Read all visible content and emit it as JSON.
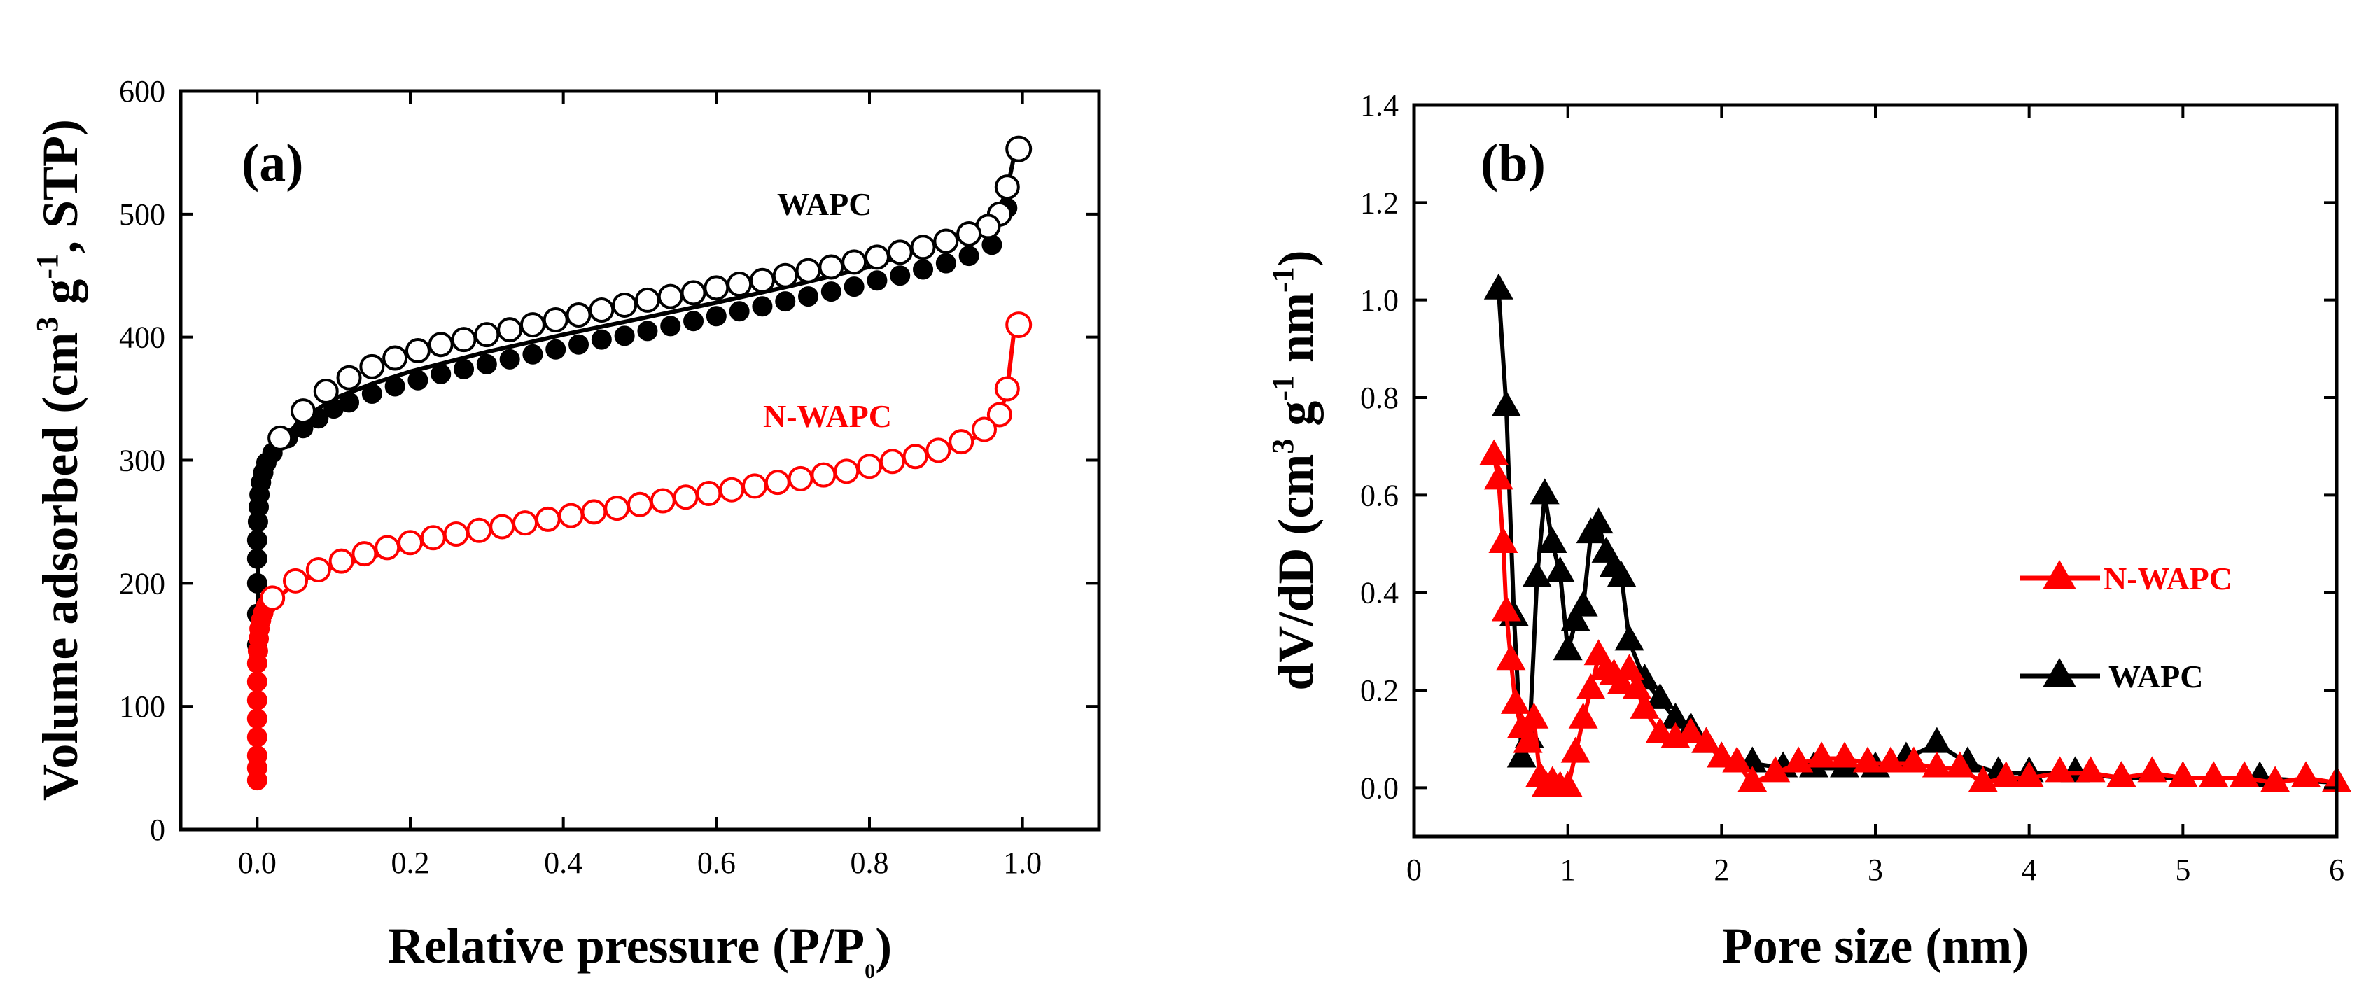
{
  "chart_data": [
    {
      "type": "scatter",
      "panel_label": "(a)",
      "xlabel_main": "Relative pressure (P/P",
      "xlabel_sub": "0",
      "xlabel_end": ")",
      "ylabel_parts": [
        "Volume adsorbed (cm",
        "3",
        " g",
        "-1",
        ", STP)"
      ],
      "xlim": [
        -0.1,
        1.1
      ],
      "ylim": [
        0,
        600
      ],
      "xticks": [
        0.0,
        0.2,
        0.4,
        0.6,
        0.8,
        1.0
      ],
      "xtick_labels": [
        "0.0",
        "0.2",
        "0.4",
        "0.6",
        "0.8",
        "1.0"
      ],
      "yticks": [
        0,
        100,
        200,
        300,
        400,
        500,
        600
      ],
      "ytick_labels": [
        "0",
        "100",
        "200",
        "300",
        "400",
        "500",
        "600"
      ],
      "series": [
        {
          "name": "WAPC",
          "color": "#000000",
          "curve_x": [
            0.0,
            0.001,
            0.003,
            0.006,
            0.01,
            0.02,
            0.03,
            0.05,
            0.08,
            0.1,
            0.15,
            0.2,
            0.3,
            0.4,
            0.5,
            0.6,
            0.7,
            0.8,
            0.9,
            0.95,
            0.97,
            0.98,
            0.99
          ],
          "curve_y": [
            150,
            200,
            240,
            270,
            290,
            305,
            315,
            328,
            342,
            350,
            362,
            372,
            388,
            402,
            415,
            428,
            442,
            457,
            478,
            495,
            505,
            520,
            550
          ],
          "adsorption": {
            "x": [
              0.0,
              0.0,
              0.0,
              0.0,
              0.0,
              0.001,
              0.002,
              0.003,
              0.005,
              0.008,
              0.012,
              0.02,
              0.04,
              0.06,
              0.08,
              0.1,
              0.12,
              0.15,
              0.18,
              0.21,
              0.24,
              0.27,
              0.3,
              0.33,
              0.36,
              0.39,
              0.42,
              0.45,
              0.48,
              0.51,
              0.54,
              0.57,
              0.6,
              0.63,
              0.66,
              0.69,
              0.72,
              0.75,
              0.78,
              0.81,
              0.84,
              0.87,
              0.9,
              0.93,
              0.96,
              0.98
            ],
            "y": [
              150,
              175,
              200,
              220,
              235,
              250,
              262,
              272,
              282,
              290,
              298,
              306,
              318,
              326,
              334,
              342,
              347,
              354,
              360,
              365,
              370,
              374,
              378,
              382,
              386,
              390,
              394,
              398,
              401,
              405,
              409,
              413,
              417,
              421,
              425,
              429,
              433,
              437,
              441,
              446,
              450,
              455,
              460,
              466,
              475,
              505
            ]
          },
          "desorption": {
            "x": [
              0.98,
              0.97,
              0.955,
              0.93,
              0.9,
              0.87,
              0.84,
              0.81,
              0.78,
              0.75,
              0.72,
              0.69,
              0.66,
              0.63,
              0.6,
              0.57,
              0.54,
              0.51,
              0.48,
              0.45,
              0.42,
              0.39,
              0.36,
              0.33,
              0.3,
              0.27,
              0.24,
              0.21,
              0.18,
              0.15,
              0.12,
              0.09,
              0.06,
              0.03
            ],
            "y": [
              522,
              500,
              490,
              484,
              478,
              473,
              469,
              465,
              461,
              457,
              454,
              450,
              446,
              443,
              440,
              436,
              433,
              430,
              426,
              422,
              418,
              414,
              410,
              406,
              402,
              398,
              394,
              389,
              383,
              376,
              367,
              356,
              340,
              318
            ]
          },
          "endpoint": {
            "x": 0.995,
            "y": 553
          }
        },
        {
          "name": "N-WAPC",
          "color": "#ff0000",
          "curve_x": [
            0.0,
            0.002,
            0.005,
            0.01,
            0.02,
            0.05,
            0.1,
            0.2,
            0.3,
            0.4,
            0.5,
            0.6,
            0.7,
            0.8,
            0.9,
            0.95,
            0.97,
            0.98,
            0.99
          ],
          "curve_y": [
            40,
            120,
            150,
            170,
            185,
            200,
            213,
            230,
            243,
            253,
            262,
            271,
            281,
            292,
            308,
            322,
            335,
            358,
            410
          ],
          "adsorption": {
            "x": [
              0.0,
              0.0,
              0.0,
              0.0,
              0.0,
              0.0,
              0.0,
              0.0,
              0.001,
              0.002,
              0.003,
              0.005,
              0.008,
              0.012
            ],
            "y": [
              40,
              50,
              60,
              75,
              90,
              105,
              120,
              135,
              145,
              155,
              163,
              170,
              176,
              182
            ]
          },
          "desorption": {
            "x": [
              0.98,
              0.97,
              0.95,
              0.92,
              0.89,
              0.86,
              0.83,
              0.8,
              0.77,
              0.74,
              0.71,
              0.68,
              0.65,
              0.62,
              0.59,
              0.56,
              0.53,
              0.5,
              0.47,
              0.44,
              0.41,
              0.38,
              0.35,
              0.32,
              0.29,
              0.26,
              0.23,
              0.2,
              0.17,
              0.14,
              0.11,
              0.08,
              0.05,
              0.02
            ],
            "y": [
              358,
              337,
              325,
              315,
              308,
              303,
              299,
              295,
              291,
              288,
              285,
              282,
              279,
              276,
              273,
              270,
              267,
              264,
              261,
              258,
              255,
              252,
              249,
              246,
              243,
              240,
              237,
              233,
              229,
              224,
              218,
              211,
              202,
              188
            ]
          },
          "endpoint": {
            "x": 0.995,
            "y": 410
          }
        }
      ]
    },
    {
      "type": "line",
      "panel_label": "(b)",
      "xlabel": "Pore size (nm)",
      "ylabel_parts": [
        "dV/dD (cm",
        "3",
        " g",
        "-1",
        " nm",
        "-1",
        ")"
      ],
      "xlim": [
        0,
        6
      ],
      "ylim": [
        -0.1,
        1.4
      ],
      "xticks": [
        0,
        1,
        2,
        3,
        4,
        5,
        6
      ],
      "xtick_labels": [
        "0",
        "1",
        "2",
        "3",
        "4",
        "5",
        "6"
      ],
      "yticks": [
        0.0,
        0.2,
        0.4,
        0.6,
        0.8,
        1.0,
        1.2,
        1.4
      ],
      "ytick_labels": [
        "0.0",
        "0.2",
        "0.4",
        "0.6",
        "0.8",
        "1.0",
        "1.2",
        "1.4"
      ],
      "legend": [
        "N-WAPC",
        "WAPC"
      ],
      "series": [
        {
          "name": "WAPC",
          "color": "#000000",
          "x": [
            0.55,
            0.6,
            0.65,
            0.7,
            0.75,
            0.8,
            0.85,
            0.9,
            0.95,
            1.0,
            1.05,
            1.1,
            1.15,
            1.2,
            1.25,
            1.3,
            1.35,
            1.4,
            1.5,
            1.6,
            1.7,
            1.8,
            1.9,
            2.0,
            2.2,
            2.4,
            2.6,
            2.8,
            3.0,
            3.2,
            3.4,
            3.6,
            3.8,
            4.0,
            4.3,
            4.6,
            5.0,
            5.5,
            6.0
          ],
          "y": [
            1.02,
            0.78,
            0.35,
            0.06,
            0.1,
            0.43,
            0.6,
            0.5,
            0.44,
            0.28,
            0.34,
            0.37,
            0.52,
            0.54,
            0.48,
            0.45,
            0.43,
            0.3,
            0.22,
            0.18,
            0.14,
            0.12,
            0.09,
            0.06,
            0.05,
            0.04,
            0.04,
            0.04,
            0.04,
            0.06,
            0.09,
            0.05,
            0.03,
            0.03,
            0.03,
            0.02,
            0.02,
            0.02,
            0.01
          ]
        },
        {
          "name": "N-WAPC",
          "color": "#ff0000",
          "x": [
            0.52,
            0.55,
            0.58,
            0.6,
            0.63,
            0.66,
            0.7,
            0.74,
            0.78,
            0.82,
            0.86,
            0.9,
            0.95,
            1.0,
            1.05,
            1.1,
            1.15,
            1.2,
            1.25,
            1.3,
            1.35,
            1.4,
            1.45,
            1.5,
            1.6,
            1.7,
            1.8,
            1.9,
            2.0,
            2.1,
            2.2,
            2.35,
            2.5,
            2.65,
            2.8,
            2.95,
            3.1,
            3.25,
            3.4,
            3.55,
            3.7,
            3.85,
            4.0,
            4.2,
            4.4,
            4.6,
            4.8,
            5.0,
            5.2,
            5.4,
            5.6,
            5.8,
            6.0
          ],
          "y": [
            0.68,
            0.63,
            0.5,
            0.36,
            0.26,
            0.17,
            0.12,
            0.09,
            0.14,
            0.02,
            0.0,
            0.01,
            0.0,
            0.0,
            0.07,
            0.14,
            0.2,
            0.27,
            0.24,
            0.23,
            0.21,
            0.24,
            0.2,
            0.16,
            0.11,
            0.1,
            0.11,
            0.09,
            0.06,
            0.05,
            0.01,
            0.03,
            0.05,
            0.06,
            0.06,
            0.05,
            0.05,
            0.05,
            0.04,
            0.04,
            0.01,
            0.02,
            0.02,
            0.03,
            0.03,
            0.02,
            0.03,
            0.02,
            0.02,
            0.02,
            0.01,
            0.02,
            0.01
          ]
        }
      ]
    }
  ]
}
